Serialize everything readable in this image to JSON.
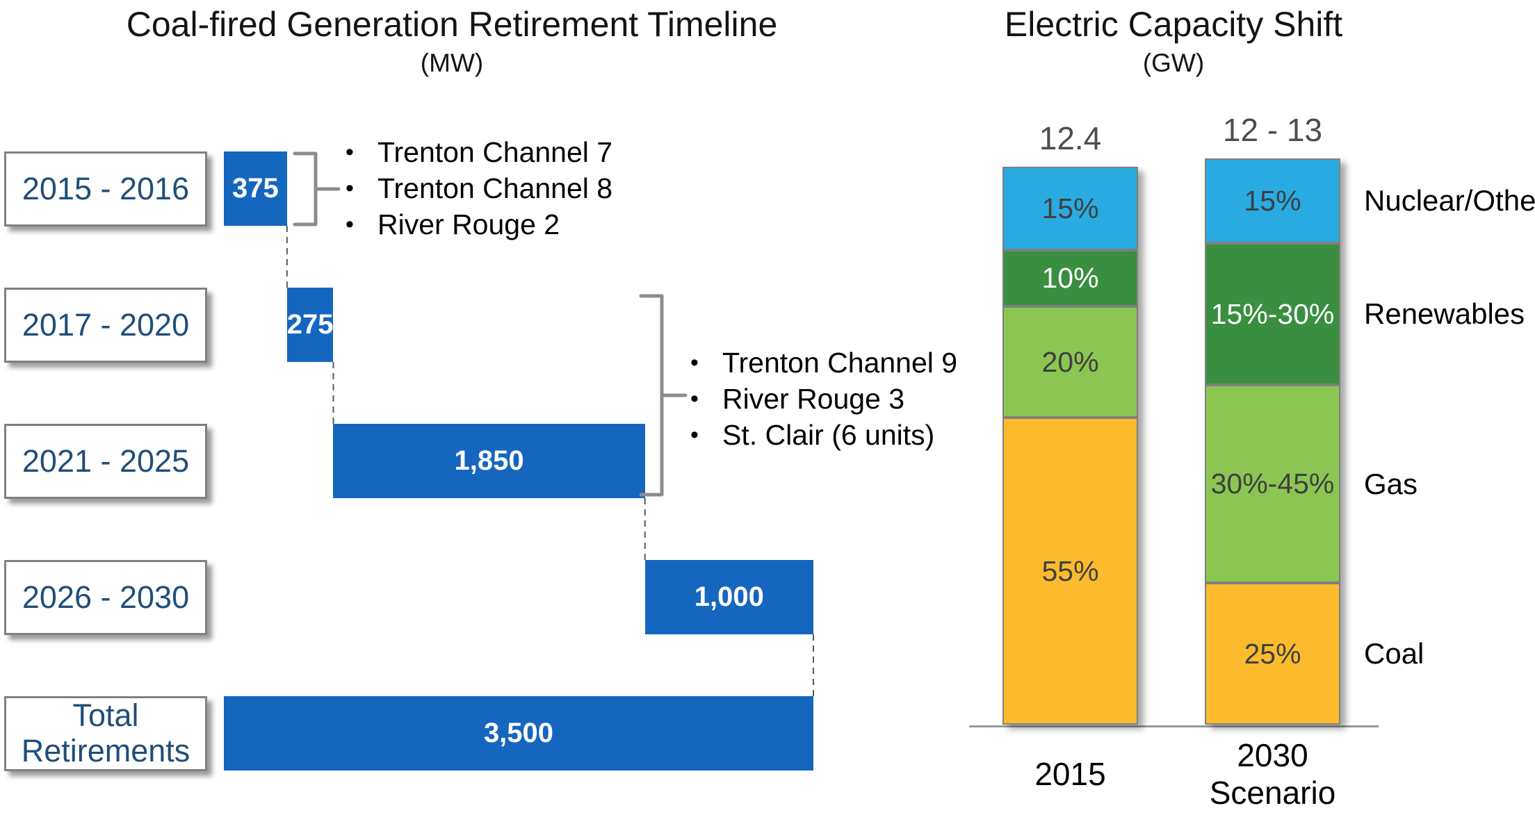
{
  "colors": {
    "retirement_bar_blue": "#1566BE",
    "nuclear_other_blue": "#29ABE2",
    "renewables_green": "#3A8E3F",
    "gas_green": "#8CC652",
    "coal_orange": "#FCBB2D",
    "year_label_navy": "#1F4E79",
    "box_border_gray": "#808080",
    "bracket_gray": "#8C8C8C",
    "total_label_gray": "#4D4D4D",
    "segment_dark_text": "#3F3F3F",
    "segment_white_text": "#FFFFFF",
    "axis_gray": "#999999",
    "connector_gray": "#595959"
  },
  "chart_data": [
    {
      "type": "bar",
      "variant": "horizontal-waterfall",
      "title": "Coal-fired Generation Retirement Timeline",
      "subtitle": "(MW)",
      "units": "MW",
      "categories": [
        "2015 - 2016",
        "2017 - 2020",
        "2021 - 2025",
        "2026 - 2030",
        "Total Retirements"
      ],
      "values": [
        375,
        275,
        1850,
        1000,
        3500
      ],
      "value_labels": [
        "375",
        "275",
        "1,850",
        "1,000",
        "3,500"
      ],
      "total": 3500,
      "is_total_row": [
        false,
        false,
        false,
        false,
        true
      ],
      "annotations": [
        {
          "category_index": 0,
          "items": [
            "Trenton Channel 7",
            "Trenton Channel 8",
            "River Rouge 2"
          ]
        },
        {
          "category_index": 2,
          "items": [
            "Trenton Channel 9",
            "River Rouge 3",
            "St. Clair (6 units)"
          ]
        }
      ],
      "xlabel": "",
      "ylabel": "",
      "grid": false
    },
    {
      "type": "bar",
      "variant": "stacked-100pct",
      "title": "Electric Capacity Shift",
      "subtitle": "(GW)",
      "units": "GW",
      "categories": [
        "2015",
        "2030 Scenario"
      ],
      "category_tick_lines": [
        [
          "2015"
        ],
        [
          "2030",
          "Scenario"
        ]
      ],
      "bar_total_labels": [
        "12.4",
        "12 - 13"
      ],
      "series": [
        {
          "name": "Nuclear/Other",
          "color_key": "nuclear_other_blue",
          "text_color": "dark",
          "labels": [
            "15%",
            "15%"
          ],
          "heights_pct": [
            15,
            15
          ]
        },
        {
          "name": "Renewables",
          "color_key": "renewables_green",
          "text_color": "white",
          "labels": [
            "10%",
            "15%-30%"
          ],
          "heights_pct": [
            10,
            25
          ]
        },
        {
          "name": "Gas",
          "color_key": "gas_green",
          "text_color": "dark",
          "labels": [
            "20%",
            "30%-45%"
          ],
          "heights_pct": [
            20,
            35
          ]
        },
        {
          "name": "Coal",
          "color_key": "coal_orange",
          "text_color": "dark",
          "labels": [
            "55%",
            "25%"
          ],
          "heights_pct": [
            55,
            25
          ]
        }
      ],
      "legend_position": "right",
      "grid": false
    }
  ]
}
